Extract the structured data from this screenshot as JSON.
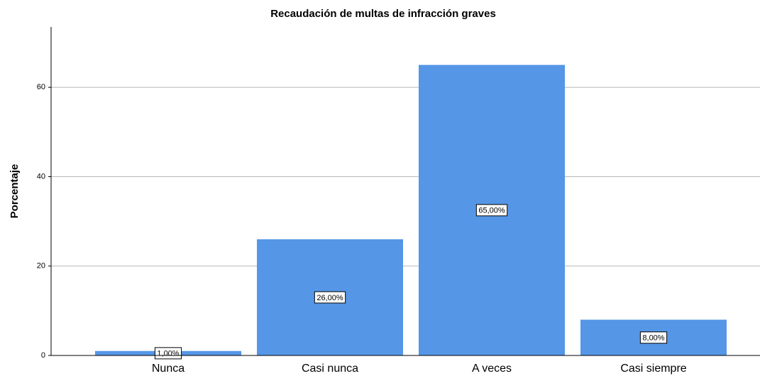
{
  "chart_data": {
    "type": "bar",
    "title": "Recaudación de multas de infracción graves",
    "y_label": "Porcentaje",
    "categories": [
      "Nunca",
      "Casi nunca",
      "A veces",
      "Casi siempre"
    ],
    "values": [
      1,
      26,
      65,
      8
    ],
    "value_labels": [
      "1,00%",
      "26,00%",
      "65,00%",
      "8,00%"
    ],
    "color": "#5596e6",
    "ylim": [
      0,
      73.5
    ],
    "yticks": [
      0,
      20,
      40,
      60
    ],
    "grid": true
  }
}
